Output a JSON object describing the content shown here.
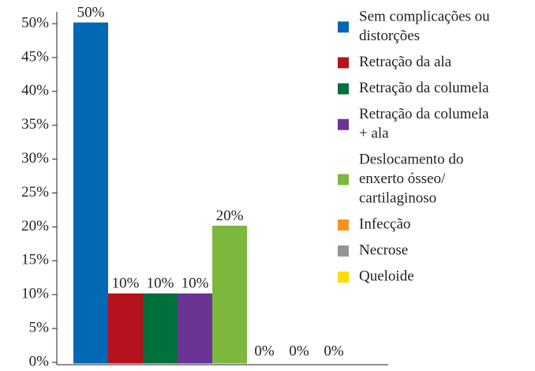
{
  "chart_data": {
    "type": "bar",
    "categories": [
      [
        "Sem complicações ou",
        "distorções"
      ],
      [
        "Retração da ala"
      ],
      [
        "Retração da columela"
      ],
      [
        "Retração da columela",
        "+ ala"
      ],
      [
        "Deslocamento do",
        "enxerto ósseo/",
        "cartilaginoso"
      ],
      [
        "Infecção"
      ],
      [
        "Necrose"
      ],
      [
        "Queloide"
      ]
    ],
    "values": [
      50,
      10,
      10,
      10,
      20,
      0,
      0,
      0
    ],
    "value_labels": [
      "50%",
      "10%",
      "10%",
      "10%",
      "20%",
      "0%",
      "0%",
      "0%"
    ],
    "colors": [
      "#0068b4",
      "#b5121b",
      "#00703c",
      "#6a3394",
      "#7cb83d",
      "#f7941d",
      "#939598",
      "#ffdd00"
    ],
    "ylim": [
      0,
      50
    ],
    "yticks": [
      {
        "value": 0,
        "label": "0%"
      },
      {
        "value": 5,
        "label": "5%"
      },
      {
        "value": 10,
        "label": "10%"
      },
      {
        "value": 15,
        "label": "15%"
      },
      {
        "value": 20,
        "label": "20%"
      },
      {
        "value": 25,
        "label": "25%"
      },
      {
        "value": 30,
        "label": "30%"
      },
      {
        "value": 35,
        "label": "35%"
      },
      {
        "value": 40,
        "label": "40%"
      },
      {
        "value": 45,
        "label": "45%"
      },
      {
        "value": 50,
        "label": "50%"
      }
    ],
    "legend": "right"
  }
}
